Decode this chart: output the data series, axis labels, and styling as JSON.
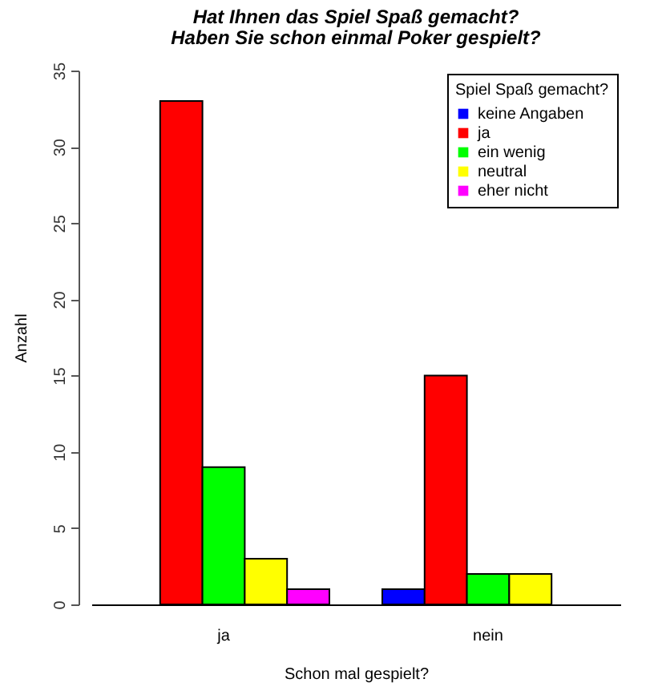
{
  "chart_data": {
    "type": "bar",
    "title": "Hat Ihnen das Spiel Spaß gemacht?",
    "subtitle": "Haben Sie schon einmal Poker gespielt?",
    "xlabel": "Schon mal gespielt?",
    "ylabel": "Anzahl",
    "legend_title": "Spiel Spaß gemacht?",
    "categories": [
      "ja",
      "nein"
    ],
    "series": [
      {
        "name": "keine Angaben",
        "color": "#0000ff",
        "values": [
          0,
          1
        ]
      },
      {
        "name": "ja",
        "color": "#ff0000",
        "values": [
          33,
          15
        ]
      },
      {
        "name": "ein wenig",
        "color": "#00ff00",
        "values": [
          9,
          2
        ]
      },
      {
        "name": "neutral",
        "color": "#ffff00",
        "values": [
          3,
          2
        ]
      },
      {
        "name": "eher nicht",
        "color": "#ff00ff",
        "values": [
          1,
          0
        ]
      }
    ],
    "ylim": [
      0,
      35
    ],
    "yticks": [
      0,
      5,
      10,
      15,
      20,
      25,
      30,
      35
    ],
    "grid": false,
    "legend": "top right"
  }
}
